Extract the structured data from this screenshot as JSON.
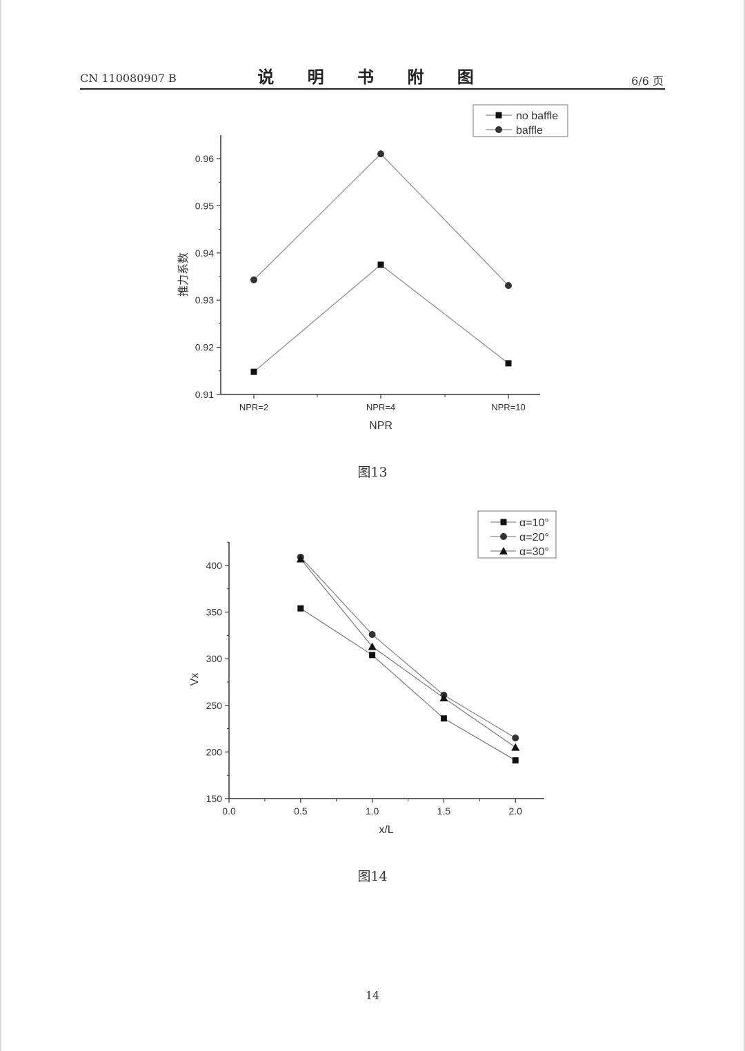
{
  "header": {
    "patent_number": "CN 110080907 B",
    "title": "说 明 书 附 图",
    "page_label": "6/6 页"
  },
  "figures": [
    {
      "caption": "图13"
    },
    {
      "caption": "图14"
    }
  ],
  "footer": {
    "page_number": "14"
  },
  "watermark": "⋯",
  "chart_data": [
    {
      "type": "line",
      "title": "",
      "xlabel": "NPR",
      "ylabel": "推力系数",
      "categories": [
        "NPR=2",
        "NPR=4",
        "NPR=10"
      ],
      "ylim": [
        0.91,
        0.965
      ],
      "yticks": [
        "0.91",
        "0.92",
        "0.93",
        "0.94",
        "0.95",
        "0.96"
      ],
      "grid": false,
      "legend_position": "top-right",
      "series": [
        {
          "name": "no baffle",
          "marker": "square",
          "values": [
            0.9148,
            0.9375,
            0.9166
          ]
        },
        {
          "name": "baffle",
          "marker": "circle",
          "values": [
            0.9343,
            0.961,
            0.9331
          ]
        }
      ]
    },
    {
      "type": "line",
      "title": "",
      "xlabel": "x/L",
      "ylabel": "Vx",
      "x": [
        0.5,
        1.0,
        1.5,
        2.0
      ],
      "xlim": [
        0.0,
        2.2
      ],
      "xticks": [
        "0.0",
        "0.5",
        "1.0",
        "1.5",
        "2.0"
      ],
      "ylim": [
        150,
        425
      ],
      "yticks": [
        "150",
        "200",
        "250",
        "300",
        "350",
        "400"
      ],
      "grid": false,
      "legend_position": "top-right",
      "series": [
        {
          "name": "α=10°",
          "marker": "square",
          "values": [
            354,
            304,
            236,
            191
          ]
        },
        {
          "name": "α=20°",
          "marker": "circle",
          "values": [
            409,
            326,
            261,
            215
          ]
        },
        {
          "name": "α=30°",
          "marker": "triangle",
          "values": [
            407,
            313,
            258,
            205
          ]
        }
      ]
    }
  ]
}
